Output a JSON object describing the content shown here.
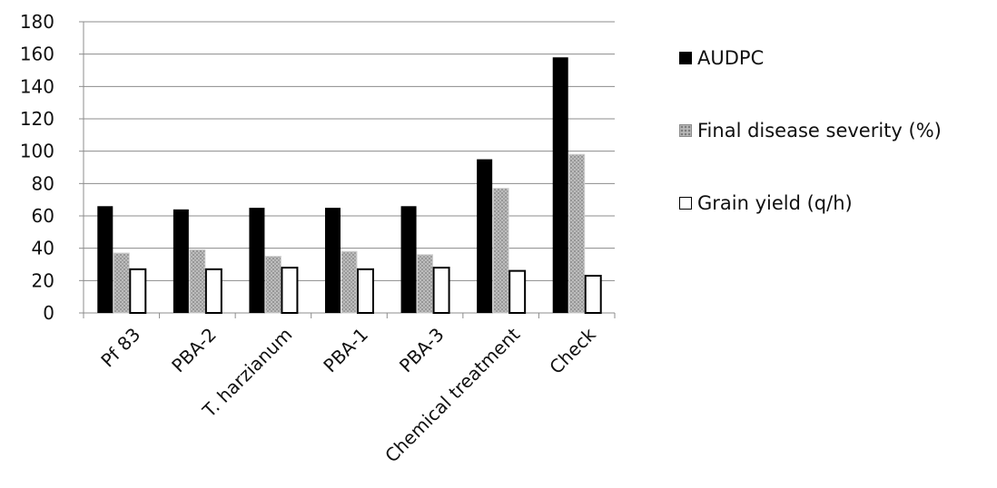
{
  "chart_data": {
    "type": "bar",
    "categories": [
      "Pf 83",
      "PBA-2",
      "T. harzianum",
      "PBA-1",
      "PBA-3",
      "Chemical treatment",
      "Check"
    ],
    "series": [
      {
        "name": "AUDPC",
        "values": [
          66,
          64,
          65,
          65,
          66,
          95,
          158
        ],
        "color": "#000000",
        "pattern": "solid"
      },
      {
        "name": "Final disease severity (%)",
        "values": [
          37,
          39,
          35,
          38,
          36,
          77,
          98
        ],
        "color": "#b0b0b0",
        "pattern": "dotted-gray"
      },
      {
        "name": "Grain yield (q/h)",
        "values": [
          27,
          27,
          28,
          27,
          28,
          26,
          23
        ],
        "color": "#ffffff",
        "pattern": "outline"
      }
    ],
    "yticks": [
      "0",
      "20",
      "40",
      "60",
      "80",
      "100",
      "120",
      "140",
      "160",
      "180"
    ],
    "ylim": [
      0,
      180
    ],
    "grid": "horizontal",
    "legend_position": "right"
  }
}
